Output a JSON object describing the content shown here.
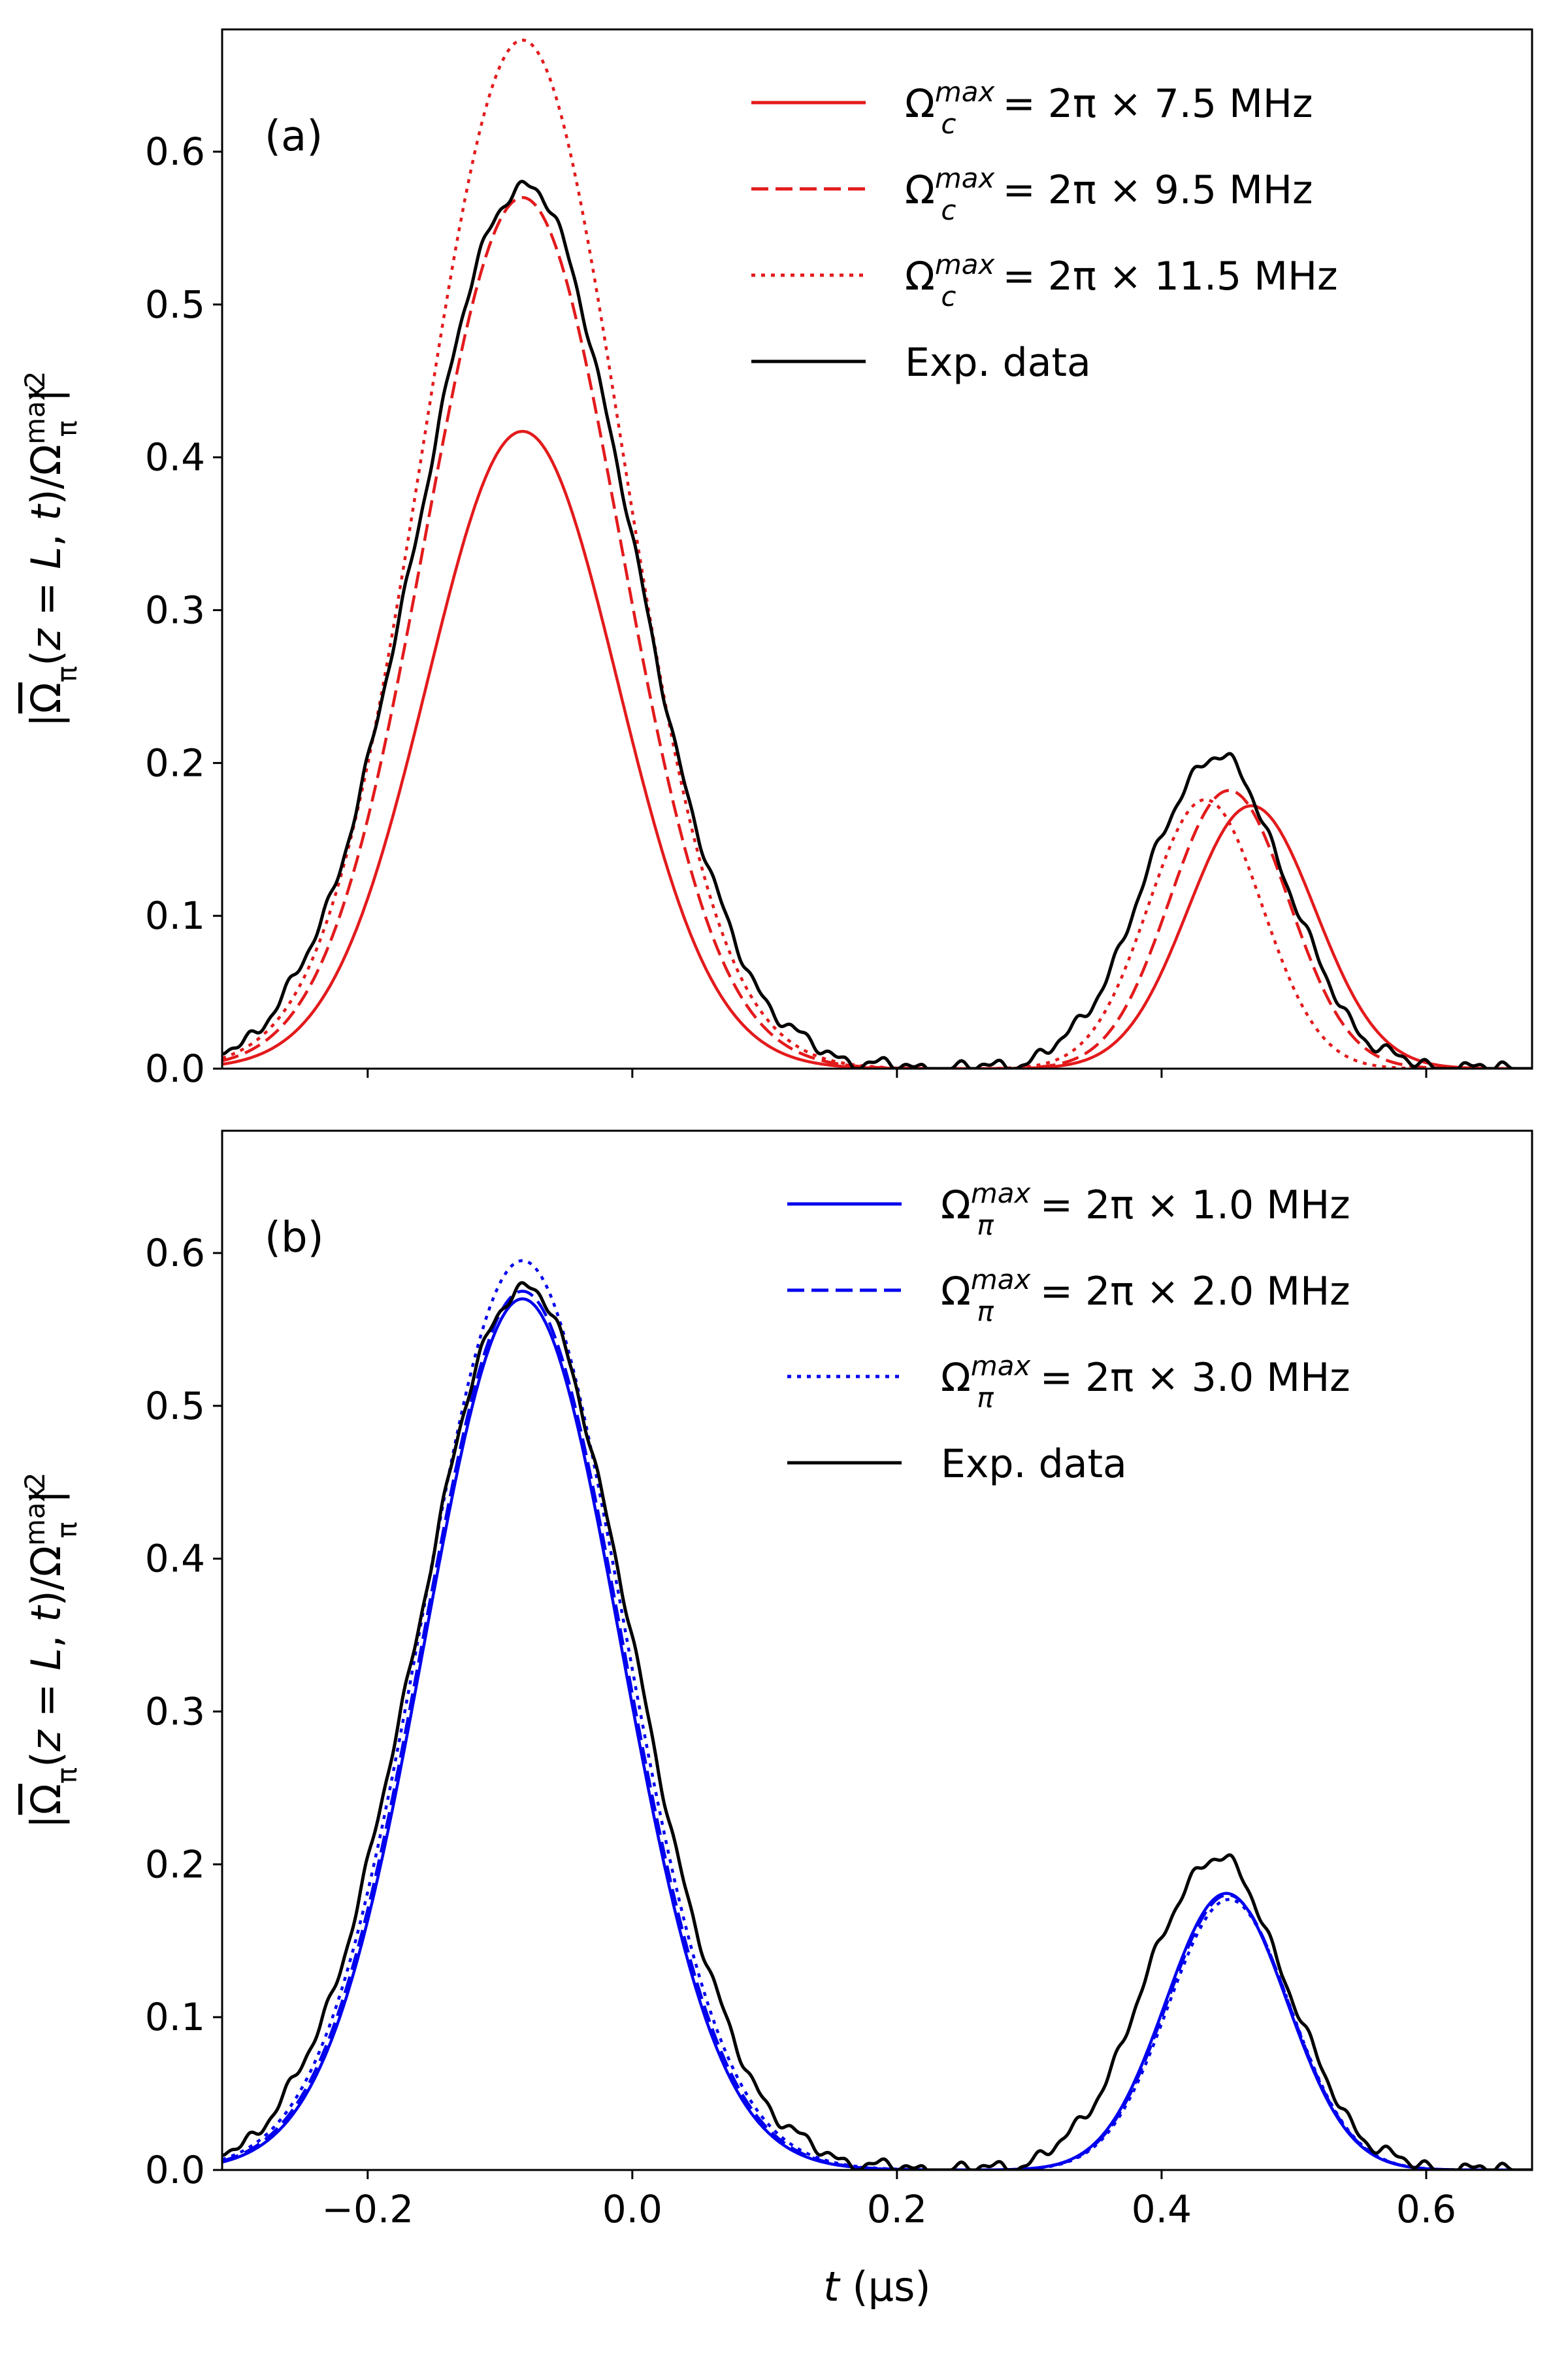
{
  "chart_data": [
    {
      "type": "line",
      "panel_label": "(a)",
      "xlabel_var": "t",
      "xlabel_unit": " (μs)",
      "ylabel_main": "|Ω",
      "ylabel_sub": "π",
      "ylabel_mid": "(z = L, t)/Ω",
      "ylabel_sup": "max",
      "ylabel_sub2": "π",
      "ylabel_end": "|²",
      "xlim": [
        -0.31,
        0.68
      ],
      "ylim": [
        0.0,
        0.68
      ],
      "xticks": [
        -0.2,
        0.0,
        0.2,
        0.4,
        0.6
      ],
      "xtick_labels": [
        "−0.2",
        "0.0",
        "0.2",
        "0.4",
        "0.6"
      ],
      "show_xtick_labels": false,
      "yticks": [
        0.0,
        0.1,
        0.2,
        0.3,
        0.4,
        0.5,
        0.6
      ],
      "ytick_labels": [
        "0.0",
        "0.1",
        "0.2",
        "0.3",
        "0.4",
        "0.5",
        "0.6"
      ],
      "legend": {
        "placement": "top-right"
      },
      "series": [
        {
          "name": "Ω_c^max = 2π × 7.5 MHz",
          "legend_base": "Ω",
          "legend_sup": "max",
          "legend_sub": "c",
          "legend_rest": " = 2π × 7.5 MHz",
          "color": "#e31a1c",
          "style": "solid",
          "peaks": [
            {
              "amp": 0.417,
              "center": -0.083,
              "sigma": 0.072
            },
            {
              "amp": 0.172,
              "center": 0.468,
              "sigma": 0.048
            }
          ]
        },
        {
          "name": "Ω_c^max = 2π × 9.5 MHz",
          "legend_base": "Ω",
          "legend_sup": "max",
          "legend_sub": "c",
          "legend_rest": " = 2π × 9.5 MHz",
          "color": "#e31a1c",
          "style": "dashed",
          "peaks": [
            {
              "amp": 0.57,
              "center": -0.083,
              "sigma": 0.074
            },
            {
              "amp": 0.182,
              "center": 0.451,
              "sigma": 0.045
            }
          ]
        },
        {
          "name": "Ω_c^max = 2π × 11.5 MHz",
          "legend_base": "Ω",
          "legend_sup": "max",
          "legend_sub": "c",
          "legend_rest": " = 2π × 11.5 MHz",
          "color": "#e31a1c",
          "style": "dotted",
          "peaks": [
            {
              "amp": 0.673,
              "center": -0.083,
              "sigma": 0.075
            },
            {
              "amp": 0.176,
              "center": 0.433,
              "sigma": 0.043
            }
          ]
        },
        {
          "name": "Exp. data",
          "legend_base": "Exp. data",
          "legend_sup": "",
          "legend_sub": "",
          "legend_rest": "",
          "color": "#000000",
          "style": "solid",
          "peaks": [
            {
              "amp": 0.578,
              "center": -0.082,
              "sigma": 0.081
            },
            {
              "amp": 0.204,
              "center": 0.441,
              "sigma": 0.053
            }
          ]
        }
      ]
    },
    {
      "type": "line",
      "panel_label": "(b)",
      "xlabel_var": "t",
      "xlabel_unit": " (μs)",
      "ylabel_main": "|Ω",
      "ylabel_sub": "π",
      "ylabel_mid": "(z = L, t)/Ω",
      "ylabel_sup": "max",
      "ylabel_sub2": "π",
      "ylabel_end": "|²",
      "xlim": [
        -0.31,
        0.68
      ],
      "ylim": [
        0.0,
        0.68
      ],
      "xticks": [
        -0.2,
        0.0,
        0.2,
        0.4,
        0.6
      ],
      "xtick_labels": [
        "−0.2",
        "0.0",
        "0.2",
        "0.4",
        "0.6"
      ],
      "show_xtick_labels": true,
      "yticks": [
        0.0,
        0.1,
        0.2,
        0.3,
        0.4,
        0.5,
        0.6
      ],
      "ytick_labels": [
        "0.0",
        "0.1",
        "0.2",
        "0.3",
        "0.4",
        "0.5",
        "0.6"
      ],
      "legend": {
        "placement": "top-right"
      },
      "series": [
        {
          "name": "Ω_π^max = 2π × 1.0 MHz",
          "legend_base": "Ω",
          "legend_sup": "max",
          "legend_sub": "π",
          "legend_rest": " = 2π × 1.0 MHz",
          "color": "#0000ee",
          "style": "solid",
          "peaks": [
            {
              "amp": 0.57,
              "center": -0.083,
              "sigma": 0.074
            },
            {
              "amp": 0.181,
              "center": 0.449,
              "sigma": 0.046
            }
          ]
        },
        {
          "name": "Ω_π^max = 2π × 2.0 MHz",
          "legend_base": "Ω",
          "legend_sup": "max",
          "legend_sub": "π",
          "legend_rest": " = 2π × 2.0 MHz",
          "color": "#0000ee",
          "style": "dashed",
          "peaks": [
            {
              "amp": 0.575,
              "center": -0.083,
              "sigma": 0.075
            },
            {
              "amp": 0.18,
              "center": 0.45,
              "sigma": 0.046
            }
          ]
        },
        {
          "name": "Ω_π^max = 2π × 3.0 MHz",
          "legend_base": "Ω",
          "legend_sup": "max",
          "legend_sub": "π",
          "legend_rest": " = 2π × 3.0 MHz",
          "color": "#0000ee",
          "style": "dotted",
          "peaks": [
            {
              "amp": 0.595,
              "center": -0.083,
              "sigma": 0.076
            },
            {
              "amp": 0.177,
              "center": 0.451,
              "sigma": 0.046
            }
          ]
        },
        {
          "name": "Exp. data",
          "legend_base": "Exp. data",
          "legend_sup": "",
          "legend_sub": "",
          "legend_rest": "",
          "color": "#000000",
          "style": "solid",
          "peaks": [
            {
              "amp": 0.578,
              "center": -0.082,
              "sigma": 0.081
            },
            {
              "amp": 0.204,
              "center": 0.441,
              "sigma": 0.053
            }
          ]
        }
      ]
    }
  ]
}
